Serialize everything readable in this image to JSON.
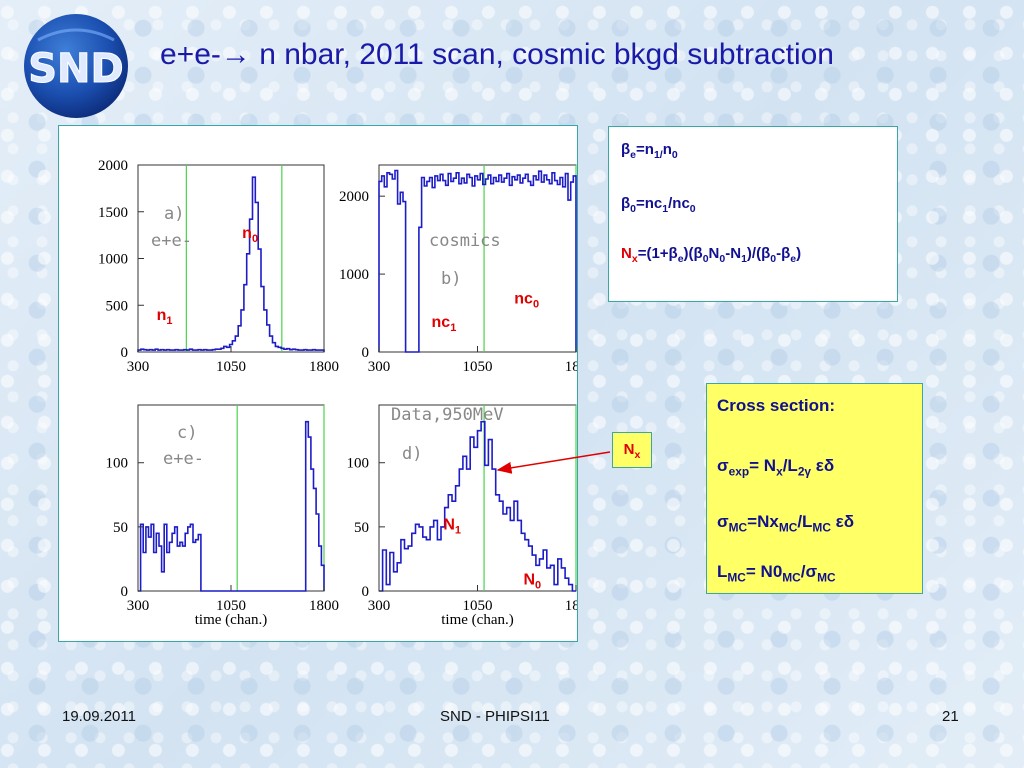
{
  "slide": {
    "title": "e+e-→ n nbar, 2011 scan, cosmic bkgd subtraction",
    "logo_text": "SND",
    "footer": {
      "date": "19.09.2011",
      "center": "SND - PHIPSI11",
      "page": "21"
    }
  },
  "formulas": {
    "line1": {
      "pre": "β",
      "s1": "e",
      "mid": "=n",
      "s2": "1/",
      "mid2": "n",
      "s3": "0"
    },
    "line2": {
      "pre": "β",
      "s1": "0",
      "mid": "=nc",
      "s2": "1",
      "mid2": "/nc",
      "s3": "0"
    },
    "line3": {
      "a": "N",
      "as": "x",
      "b": "=(1+β",
      "bs": "e",
      "c": ")(β",
      "cs": "0",
      "d": "N",
      "ds": "0",
      "e": "-N",
      "es": "1",
      "f": ")/(β",
      "fs": "0",
      "g": "-β",
      "gs": "e",
      "h": ")"
    }
  },
  "nx_label": {
    "main": "N",
    "sub": "x"
  },
  "cross_section": {
    "title": "Cross section:",
    "l1": {
      "a": "σ",
      "as": "exp",
      "b": "= N",
      "bs": "x",
      "c": "/L",
      "cs": "2γ",
      "d": " εδ"
    },
    "l2": {
      "a": "σ",
      "as": "MC",
      "b": "=Nx",
      "bs": "MC",
      "c": "/L",
      "cs": "MC",
      "d": " εδ"
    },
    "l3": {
      "a": "L",
      "as": "MC",
      "b": "= N0",
      "bs": "MC",
      "c": "/σ",
      "cs": "MC"
    }
  },
  "chart_data": [
    {
      "type": "histogram",
      "panel_tag": "a)",
      "subtitle": "e+e-",
      "x_ticks": [
        "300",
        "1050",
        "1800"
      ],
      "x_range": [
        300,
        1800
      ],
      "y_ticks": [
        "0",
        "500",
        "1000",
        "1500",
        "2000"
      ],
      "ylim": [
        0,
        2000
      ],
      "vlines": [
        690,
        1460
      ],
      "annotations": [
        {
          "text": "n",
          "sub": "0",
          "x": 1140,
          "y": 1220
        },
        {
          "text": "n",
          "sub": "1",
          "x": 450,
          "y": 340
        }
      ],
      "values": [
        20,
        30,
        25,
        20,
        25,
        20,
        30,
        20,
        25,
        20,
        25,
        20,
        20,
        25,
        20,
        20,
        25,
        20,
        30,
        20,
        20,
        25,
        20,
        25,
        20,
        20,
        25,
        30,
        30,
        40,
        60,
        50,
        80,
        120,
        170,
        280,
        450,
        720,
        1050,
        1420,
        1870,
        1600,
        1100,
        700,
        450,
        290,
        170,
        100,
        60,
        50,
        40,
        30,
        35,
        25,
        30,
        25,
        20,
        20,
        25,
        20,
        20,
        25,
        20,
        20,
        20
      ]
    },
    {
      "type": "histogram",
      "panel_tag": "b)",
      "subtitle": "cosmics",
      "x_ticks": [
        "300",
        "1050",
        "180"
      ],
      "x_range": [
        300,
        1800
      ],
      "y_ticks": [
        "0",
        "1000",
        "2000"
      ],
      "ylim": [
        0,
        2400
      ],
      "vlines": [
        1100,
        1870
      ],
      "annotations": [
        {
          "text": "nc",
          "sub": "0",
          "x": 1330,
          "y": 620
        },
        {
          "text": "nc",
          "sub": "1",
          "x": 700,
          "y": 320
        }
      ],
      "values": [
        2190,
        2260,
        2120,
        2300,
        2280,
        2220,
        2330,
        1900,
        2050,
        1930,
        0,
        0,
        0,
        0,
        0,
        1600,
        2240,
        2130,
        2190,
        2240,
        2110,
        2260,
        2200,
        2280,
        2200,
        2140,
        2290,
        2190,
        2230,
        2300,
        2160,
        2230,
        2170,
        2280,
        2240,
        2130,
        2260,
        2210,
        2290,
        2150,
        2220,
        2270,
        2160,
        2240,
        2190,
        2270,
        2180,
        2230,
        2290,
        2140,
        2250,
        2210,
        2270,
        2170,
        2230,
        2280,
        2190,
        2140,
        2260,
        2210,
        2320,
        2180,
        2270,
        2210,
        2160,
        2300,
        2200,
        2150,
        2240,
        2120,
        2290,
        1950,
        2180,
        2260
      ]
    },
    {
      "type": "histogram",
      "panel_tag": "c)",
      "subtitle": "e+e-",
      "x_ticks": [
        "300",
        "1050",
        "1800"
      ],
      "x_range": [
        300,
        1800
      ],
      "y_ticks": [
        "0",
        "50",
        "100"
      ],
      "ylim": [
        0,
        145
      ],
      "vlines": [
        1100,
        1870
      ],
      "annotations": [],
      "values": [
        0,
        52,
        30,
        50,
        42,
        52,
        30,
        45,
        35,
        15,
        52,
        30,
        38,
        45,
        50,
        35,
        38,
        35,
        45,
        50,
        52,
        38,
        40,
        44,
        0,
        0,
        0,
        0,
        0,
        0,
        0,
        0,
        0,
        0,
        0,
        0,
        0,
        0,
        0,
        0,
        0,
        0,
        0,
        0,
        0,
        0,
        0,
        0,
        0,
        0,
        0,
        0,
        0,
        0,
        0,
        0,
        0,
        0,
        0,
        0,
        0,
        0,
        0,
        0,
        132,
        120,
        95,
        80,
        60,
        35,
        20
      ]
    },
    {
      "type": "histogram",
      "panel_tag": "d)",
      "subtitle": "Data,950MeV",
      "x_ticks": [
        "300",
        "1050",
        "180"
      ],
      "x_range": [
        300,
        1800
      ],
      "y_ticks": [
        "0",
        "50",
        "100"
      ],
      "ylim": [
        0,
        145
      ],
      "vlines": [
        1100,
        1870
      ],
      "annotations": [
        {
          "text": "N",
          "sub": "1",
          "x": 790,
          "y": 48
        },
        {
          "text": "N",
          "sub": "0",
          "x": 1400,
          "y": 5
        }
      ],
      "values": [
        0,
        32,
        5,
        30,
        15,
        22,
        40,
        33,
        35,
        45,
        52,
        50,
        42,
        40,
        50,
        55,
        40,
        50,
        65,
        75,
        70,
        82,
        95,
        105,
        95,
        120,
        112,
        125,
        132,
        98,
        118,
        95,
        75,
        70,
        60,
        65,
        55,
        70,
        55,
        45,
        40,
        35,
        28,
        20,
        25,
        32,
        18,
        20,
        5,
        25,
        18,
        10,
        5,
        0
      ]
    }
  ],
  "axis_label_time": "time (chan.)"
}
